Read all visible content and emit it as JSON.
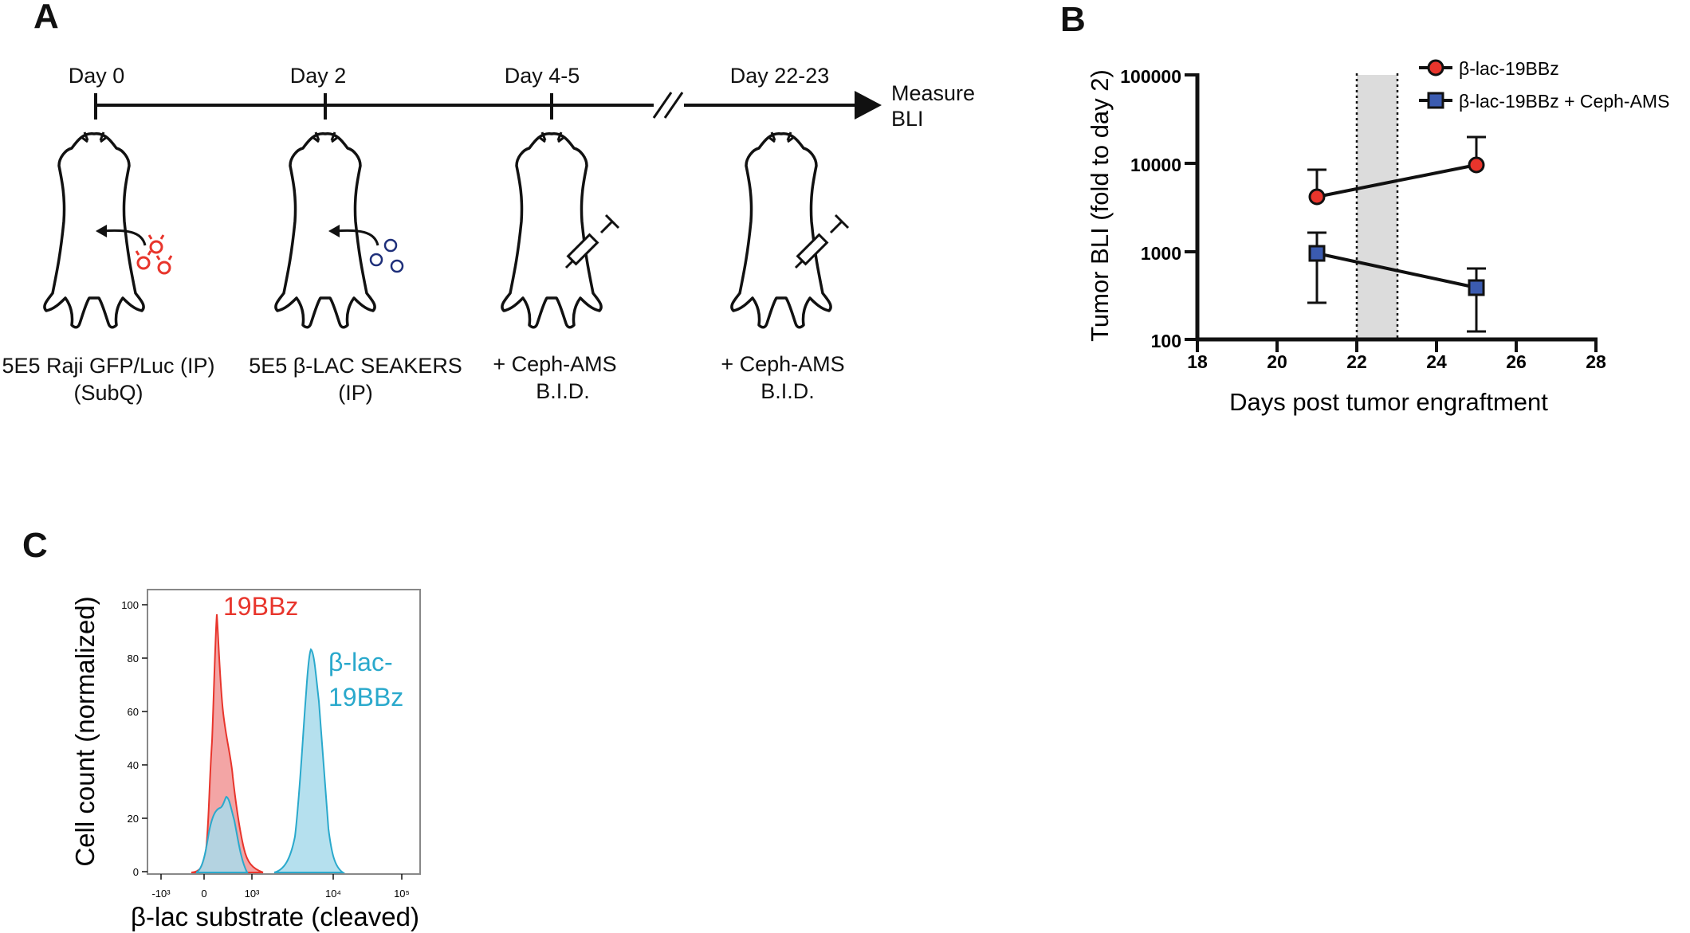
{
  "panels": {
    "a": "A",
    "b": "B",
    "c": "C"
  },
  "timeline": {
    "days": [
      "Day 0",
      "Day 2",
      "Day 4-5",
      "Day 22-23"
    ],
    "endpoint": [
      "Measure",
      "BLI"
    ]
  },
  "steps": [
    {
      "line1": "5E5 Raji GFP/Luc (IP)",
      "line2": "(SubQ)"
    },
    {
      "line1": "5E5 β-LAC SEAKERS",
      "line2": "(IP)"
    },
    {
      "line1": "+ Ceph-AMS",
      "line2": "B.I.D."
    },
    {
      "line1": "+ Ceph-AMS",
      "line2": "B.I.D."
    }
  ],
  "colors": {
    "red": "#e8352c",
    "blue": "#3b5bb0",
    "cyan": "#2aa9cc",
    "navy": "#1e2f7a"
  },
  "chart_data": [
    {
      "type": "line",
      "panel": "B",
      "xlabel": "Days post tumor engraftment",
      "ylabel": "Tumor BLI (fold to day 2)",
      "yscale": "log",
      "xlim": [
        18,
        28
      ],
      "ylim": [
        100,
        100000
      ],
      "xticks": [
        "18",
        "20",
        "22",
        "24",
        "26",
        "28"
      ],
      "yticks": [
        "100",
        "1000",
        "10000",
        "100000"
      ],
      "shaded_range": [
        22,
        23
      ],
      "series": [
        {
          "name": "β-lac-19BBz",
          "marker": "circle",
          "color": "#e8352c",
          "x": [
            21,
            25
          ],
          "y": [
            4000,
            9200
          ],
          "err_low": [
            4000,
            9200
          ],
          "err_high": [
            8500,
            19500
          ]
        },
        {
          "name": "β-lac-19BBz + Ceph-AMS",
          "marker": "square",
          "color": "#3b5bb0",
          "x": [
            21,
            25
          ],
          "y": [
            920,
            380
          ],
          "err_low": [
            260,
            125
          ],
          "err_high": [
            1600,
            640
          ]
        }
      ]
    },
    {
      "type": "area",
      "panel": "C",
      "xlabel": "β-lac substrate (cleaved)",
      "ylabel": "Cell count (normalized)",
      "ylim": [
        0,
        100
      ],
      "yticks": [
        "0",
        "20",
        "40",
        "60",
        "80",
        "100"
      ],
      "xticks": [
        "-10³",
        "0",
        "10³",
        "10⁴",
        "10⁵"
      ],
      "series": [
        {
          "name": "19BBz",
          "color": "#e8352c",
          "peak_y": 96
        },
        {
          "name": "β-lac-19BBz",
          "label_lines": [
            "β-lac-",
            "19BBz"
          ],
          "color": "#2aa9cc",
          "peak_y": 83,
          "secondary_peak_y": 28
        }
      ]
    }
  ]
}
